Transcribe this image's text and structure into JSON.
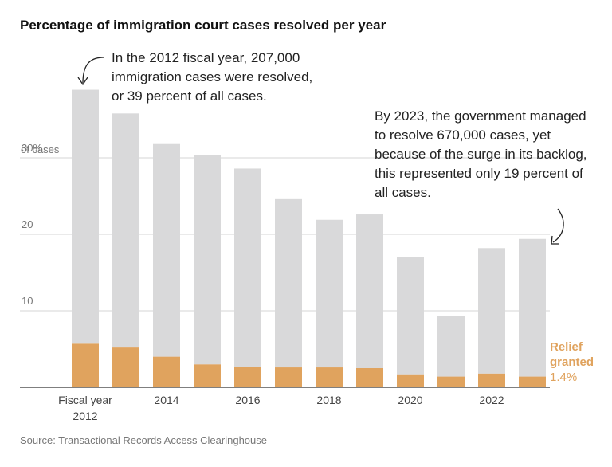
{
  "chart_data": {
    "type": "stacked-bar",
    "title": "Percentage of immigration court cases resolved per year",
    "source": "Source: Transactional Records Access Clearinghouse",
    "categories": [
      "Fiscal year 2012",
      null,
      "2014",
      null,
      "2016",
      null,
      "2018",
      null,
      "2020",
      null,
      "2022",
      null
    ],
    "series": [
      {
        "name": "Relief granted",
        "color": "#e0a35e",
        "values": [
          5.7,
          5.2,
          4.0,
          3.0,
          2.7,
          2.6,
          2.6,
          2.5,
          1.7,
          1.4,
          1.8,
          1.4
        ],
        "value_labels": [
          null,
          null,
          null,
          null,
          null,
          null,
          null,
          null,
          null,
          null,
          null,
          "1.4%"
        ]
      },
      {
        "color": "#d9d9da",
        "values": [
          33.2,
          30.6,
          27.8,
          27.4,
          25.9,
          22.0,
          19.3,
          20.1,
          15.3,
          7.9,
          16.4,
          18.0
        ]
      }
    ],
    "ylim": [
      0,
      40
    ],
    "yticks": [
      10,
      20,
      {
        "value": 30,
        "label": "30%"
      }
    ],
    "y_label": "of cases",
    "grid": true,
    "annotations": [
      "In the 2012 fiscal year, 207,000 immigration cases were resolved, or 39 percent of all cases.",
      "By 2023, the government managed to resolve 670,000 cases, yet because of the surge in its backlog, this represented only 19 percent of all cases."
    ]
  }
}
